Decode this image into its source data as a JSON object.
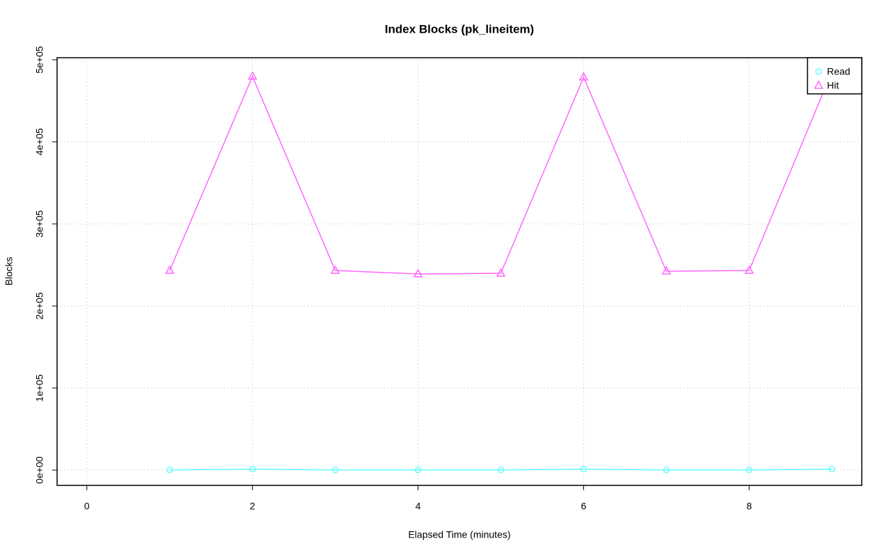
{
  "chart_data": {
    "type": "line",
    "title": "Index Blocks (pk_lineitem)",
    "xlabel": "Elapsed Time (minutes)",
    "ylabel": "Blocks",
    "x": [
      1,
      2,
      3,
      4,
      5,
      6,
      7,
      8,
      9
    ],
    "series": [
      {
        "name": "Read",
        "color": "#66ffff",
        "marker": "circle",
        "values": [
          300,
          1200,
          300,
          300,
          300,
          1200,
          300,
          300,
          1200
        ]
      },
      {
        "name": "Hit",
        "color": "#ff66ff",
        "marker": "triangle",
        "values": [
          243200,
          479700,
          243200,
          239000,
          239800,
          478800,
          242400,
          243200,
          485600
        ]
      }
    ],
    "xlim": [
      -0.36,
      9.36
    ],
    "xticks": [
      0,
      2,
      4,
      6,
      8
    ],
    "ylim": [
      -18600,
      502500
    ],
    "yticks": [
      {
        "value": 0,
        "label": "0e+00"
      },
      {
        "value": 100000,
        "label": "1e+05"
      },
      {
        "value": 200000,
        "label": "2e+05"
      },
      {
        "value": 300000,
        "label": "3e+05"
      },
      {
        "value": 400000,
        "label": "4e+05"
      },
      {
        "value": 500000,
        "label": "5e+05"
      }
    ],
    "grid": true,
    "legend": "topright"
  }
}
